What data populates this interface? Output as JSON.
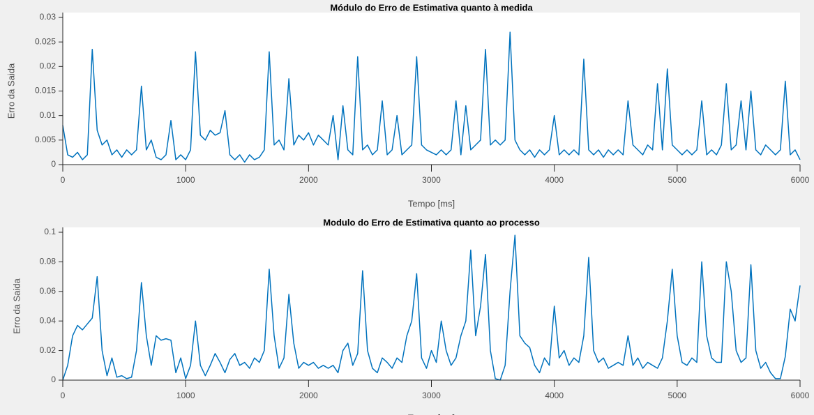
{
  "chart_data": [
    {
      "type": "line",
      "title": "Módulo do Erro de Estimativa quanto à medida",
      "xlabel": "Tempo [ms]",
      "ylabel": "Erro da Saida",
      "color": "#0072bd",
      "xlim": [
        0,
        6000
      ],
      "xticks": [
        0,
        1000,
        2000,
        3000,
        4000,
        5000,
        6000
      ],
      "ylim": [
        0,
        0.03
      ],
      "yticks": [
        0,
        0.005,
        0.01,
        0.015,
        0.02,
        0.025,
        0.03
      ],
      "x": [
        0,
        40,
        80,
        120,
        160,
        200,
        240,
        280,
        320,
        360,
        400,
        440,
        480,
        520,
        560,
        600,
        640,
        680,
        720,
        760,
        800,
        840,
        880,
        920,
        960,
        1000,
        1040,
        1080,
        1120,
        1160,
        1200,
        1240,
        1280,
        1320,
        1360,
        1400,
        1440,
        1480,
        1520,
        1560,
        1600,
        1640,
        1680,
        1720,
        1760,
        1800,
        1840,
        1880,
        1920,
        1960,
        2000,
        2040,
        2080,
        2120,
        2160,
        2200,
        2240,
        2280,
        2320,
        2360,
        2400,
        2440,
        2480,
        2520,
        2560,
        2600,
        2640,
        2680,
        2720,
        2760,
        2800,
        2840,
        2880,
        2920,
        2960,
        3000,
        3040,
        3080,
        3120,
        3160,
        3200,
        3240,
        3280,
        3320,
        3360,
        3400,
        3440,
        3480,
        3520,
        3560,
        3600,
        3640,
        3680,
        3720,
        3760,
        3800,
        3840,
        3880,
        3920,
        3960,
        4000,
        4040,
        4080,
        4120,
        4160,
        4200,
        4240,
        4280,
        4320,
        4360,
        4400,
        4440,
        4480,
        4520,
        4560,
        4600,
        4640,
        4680,
        4720,
        4760,
        4800,
        4840,
        4880,
        4920,
        4960,
        5000,
        5040,
        5080,
        5120,
        5160,
        5200,
        5240,
        5280,
        5320,
        5360,
        5400,
        5440,
        5480,
        5520,
        5560,
        5600,
        5640,
        5680,
        5720,
        5760,
        5800,
        5840,
        5880,
        5920,
        5960,
        6000
      ],
      "values": [
        0.008,
        0.002,
        0.0015,
        0.0025,
        0.001,
        0.002,
        0.0235,
        0.007,
        0.004,
        0.005,
        0.002,
        0.003,
        0.0015,
        0.003,
        0.002,
        0.003,
        0.016,
        0.003,
        0.005,
        0.0015,
        0.001,
        0.002,
        0.009,
        0.001,
        0.002,
        0.001,
        0.003,
        0.023,
        0.006,
        0.005,
        0.007,
        0.006,
        0.0065,
        0.011,
        0.002,
        0.001,
        0.002,
        0.0005,
        0.002,
        0.001,
        0.0015,
        0.003,
        0.023,
        0.004,
        0.005,
        0.003,
        0.0175,
        0.004,
        0.006,
        0.005,
        0.0065,
        0.004,
        0.006,
        0.005,
        0.004,
        0.01,
        0.001,
        0.012,
        0.003,
        0.002,
        0.022,
        0.003,
        0.004,
        0.002,
        0.003,
        0.013,
        0.002,
        0.003,
        0.01,
        0.002,
        0.003,
        0.004,
        0.022,
        0.004,
        0.003,
        0.0025,
        0.002,
        0.003,
        0.002,
        0.003,
        0.013,
        0.002,
        0.012,
        0.003,
        0.004,
        0.005,
        0.0235,
        0.004,
        0.005,
        0.004,
        0.005,
        0.027,
        0.005,
        0.003,
        0.002,
        0.003,
        0.0015,
        0.003,
        0.002,
        0.003,
        0.01,
        0.002,
        0.003,
        0.002,
        0.003,
        0.002,
        0.0215,
        0.003,
        0.002,
        0.003,
        0.0015,
        0.003,
        0.002,
        0.003,
        0.002,
        0.013,
        0.004,
        0.003,
        0.002,
        0.004,
        0.003,
        0.0165,
        0.003,
        0.0195,
        0.004,
        0.003,
        0.002,
        0.003,
        0.002,
        0.003,
        0.013,
        0.002,
        0.003,
        0.002,
        0.004,
        0.0165,
        0.003,
        0.004,
        0.013,
        0.003,
        0.015,
        0.003,
        0.002,
        0.004,
        0.003,
        0.002,
        0.003,
        0.017,
        0.002,
        0.003,
        0.001
      ]
    },
    {
      "type": "line",
      "title": "Modulo do Erro de Estimativa quanto ao processo",
      "xlabel": "Tempo [ms]",
      "ylabel": "Erro da Saida",
      "color": "#0072bd",
      "xlim": [
        0,
        6000
      ],
      "xticks": [
        0,
        1000,
        2000,
        3000,
        4000,
        5000,
        6000
      ],
      "ylim": [
        0,
        0.1
      ],
      "yticks": [
        0,
        0.02,
        0.04,
        0.06,
        0.08,
        0.1
      ],
      "x": [
        0,
        40,
        80,
        120,
        160,
        200,
        240,
        280,
        320,
        360,
        400,
        440,
        480,
        520,
        560,
        600,
        640,
        680,
        720,
        760,
        800,
        840,
        880,
        920,
        960,
        1000,
        1040,
        1080,
        1120,
        1160,
        1200,
        1240,
        1280,
        1320,
        1360,
        1400,
        1440,
        1480,
        1520,
        1560,
        1600,
        1640,
        1680,
        1720,
        1760,
        1800,
        1840,
        1880,
        1920,
        1960,
        2000,
        2040,
        2080,
        2120,
        2160,
        2200,
        2240,
        2280,
        2320,
        2360,
        2400,
        2440,
        2480,
        2520,
        2560,
        2600,
        2640,
        2680,
        2720,
        2760,
        2800,
        2840,
        2880,
        2920,
        2960,
        3000,
        3040,
        3080,
        3120,
        3160,
        3200,
        3240,
        3280,
        3320,
        3360,
        3400,
        3440,
        3480,
        3520,
        3560,
        3600,
        3640,
        3680,
        3720,
        3760,
        3800,
        3840,
        3880,
        3920,
        3960,
        4000,
        4040,
        4080,
        4120,
        4160,
        4200,
        4240,
        4280,
        4320,
        4360,
        4400,
        4440,
        4480,
        4520,
        4560,
        4600,
        4640,
        4680,
        4720,
        4760,
        4800,
        4840,
        4880,
        4920,
        4960,
        5000,
        5040,
        5080,
        5120,
        5160,
        5200,
        5240,
        5280,
        5320,
        5360,
        5400,
        5440,
        5480,
        5520,
        5560,
        5600,
        5640,
        5680,
        5720,
        5760,
        5800,
        5840,
        5880,
        5920,
        5960,
        6000
      ],
      "values": [
        0,
        0.01,
        0.03,
        0.037,
        0.034,
        0.038,
        0.042,
        0.07,
        0.02,
        0.003,
        0.015,
        0.002,
        0.003,
        0.001,
        0.002,
        0.02,
        0.066,
        0.03,
        0.01,
        0.03,
        0.027,
        0.028,
        0.027,
        0.005,
        0.015,
        0.001,
        0.01,
        0.04,
        0.01,
        0.003,
        0.01,
        0.018,
        0.012,
        0.005,
        0.014,
        0.018,
        0.01,
        0.012,
        0.008,
        0.015,
        0.012,
        0.02,
        0.075,
        0.03,
        0.008,
        0.015,
        0.058,
        0.025,
        0.008,
        0.012,
        0.01,
        0.012,
        0.008,
        0.01,
        0.008,
        0.01,
        0.005,
        0.02,
        0.025,
        0.01,
        0.018,
        0.074,
        0.02,
        0.008,
        0.005,
        0.015,
        0.012,
        0.008,
        0.015,
        0.012,
        0.03,
        0.04,
        0.072,
        0.015,
        0.008,
        0.02,
        0.012,
        0.04,
        0.02,
        0.01,
        0.015,
        0.03,
        0.04,
        0.088,
        0.03,
        0.05,
        0.085,
        0.02,
        0.001,
        0,
        0.01,
        0.06,
        0.098,
        0.03,
        0.025,
        0.022,
        0.01,
        0.005,
        0.015,
        0.01,
        0.05,
        0.015,
        0.02,
        0.01,
        0.015,
        0.012,
        0.03,
        0.083,
        0.02,
        0.012,
        0.015,
        0.008,
        0.01,
        0.012,
        0.01,
        0.03,
        0.01,
        0.015,
        0.008,
        0.012,
        0.01,
        0.008,
        0.015,
        0.04,
        0.075,
        0.03,
        0.012,
        0.01,
        0.015,
        0.012,
        0.08,
        0.03,
        0.015,
        0.012,
        0.012,
        0.08,
        0.06,
        0.02,
        0.012,
        0.015,
        0.078,
        0.02,
        0.008,
        0.012,
        0.005,
        0.001,
        0.001,
        0.016,
        0.048,
        0.04,
        0.064
      ]
    }
  ]
}
